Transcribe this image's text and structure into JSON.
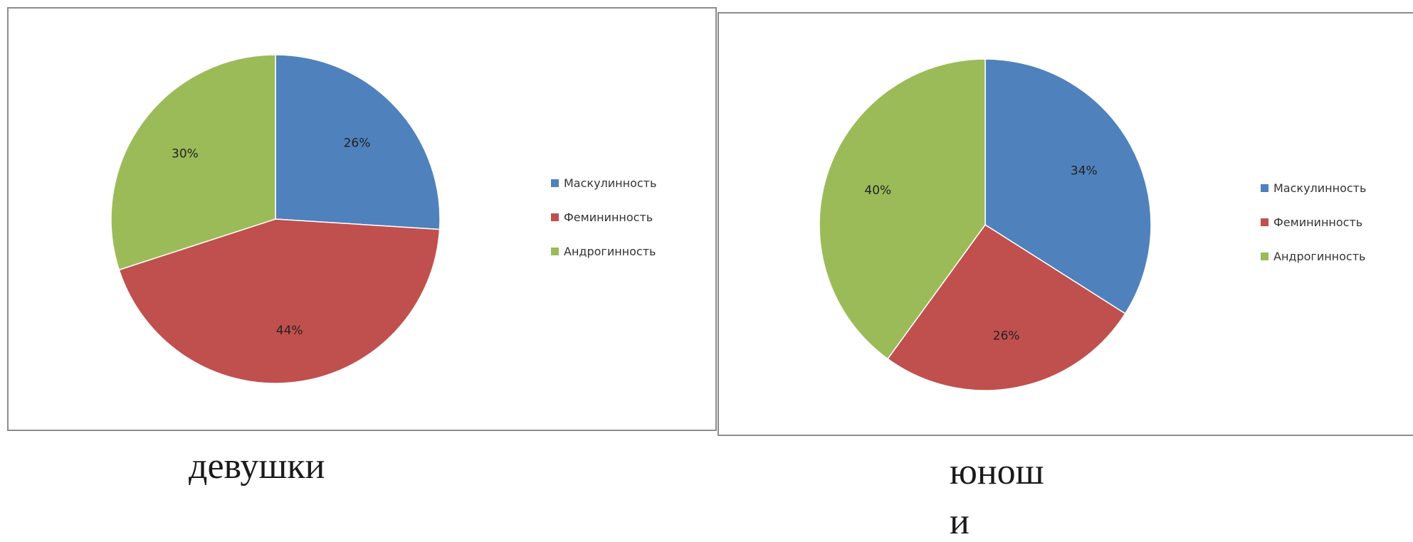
{
  "chart_data": [
    {
      "type": "pie",
      "categories": [
        "Маскулинность",
        "Фемининность",
        "Андрогинность"
      ],
      "values": [
        26,
        44,
        30
      ],
      "value_labels": [
        "26%",
        "44%",
        "30%"
      ],
      "colors": [
        "#4f81bd",
        "#c0504d",
        "#9bbb59"
      ],
      "legend": "right",
      "caption": "девушки"
    },
    {
      "type": "pie",
      "categories": [
        "Маскулинность",
        "Фемининность",
        "Андрогинность"
      ],
      "values": [
        34,
        26,
        40
      ],
      "value_labels": [
        "34%",
        "26%",
        "40%"
      ],
      "colors": [
        "#4f81bd",
        "#c0504d",
        "#9bbb59"
      ],
      "legend": "right",
      "caption_lines": [
        "юнош",
        "и"
      ]
    }
  ]
}
